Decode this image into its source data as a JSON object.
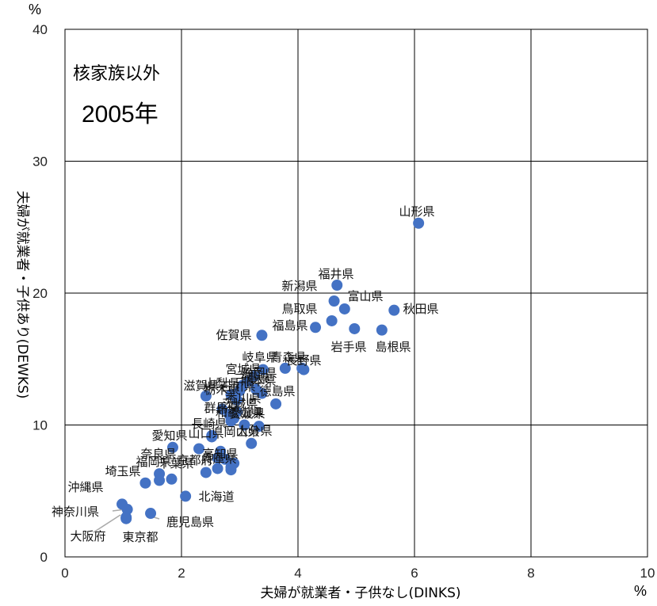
{
  "chart_data": {
    "type": "scatter",
    "title": "",
    "annotations": [
      "核家族以外",
      "2005年"
    ],
    "xlabel": "夫婦が就業者・子供なし(DINKS)",
    "ylabel": "夫婦が就業者・子供あり(DEWKS)",
    "x_unit": "%",
    "y_unit": "%",
    "xlim": [
      0,
      10
    ],
    "ylim": [
      0,
      40
    ],
    "xticks": [
      0,
      2,
      4,
      6,
      8,
      10
    ],
    "yticks": [
      0,
      10,
      20,
      30,
      40
    ],
    "grid": true,
    "point_color": "#4472c4",
    "points": [
      {
        "name": "山形県",
        "x": 6.07,
        "y": 25.3,
        "show": true
      },
      {
        "name": "福井県",
        "x": 4.67,
        "y": 20.6,
        "show": true
      },
      {
        "name": "新潟県",
        "x": 4.62,
        "y": 19.4,
        "show": true
      },
      {
        "name": "富山県",
        "x": 4.8,
        "y": 18.8,
        "show": true
      },
      {
        "name": "秋田県",
        "x": 5.65,
        "y": 18.7,
        "show": true
      },
      {
        "name": "鳥取県",
        "x": 4.58,
        "y": 17.9,
        "show": true
      },
      {
        "name": "福島県",
        "x": 4.3,
        "y": 17.4,
        "show": true
      },
      {
        "name": "岩手県",
        "x": 4.97,
        "y": 17.3,
        "show": true
      },
      {
        "name": "島根県",
        "x": 5.44,
        "y": 17.2,
        "show": true
      },
      {
        "name": "佐賀県",
        "x": 3.38,
        "y": 16.8,
        "show": true
      },
      {
        "name": "長野県",
        "x": 4.07,
        "y": 14.3,
        "show": true
      },
      {
        "name": "青森県",
        "x": 4.1,
        "y": 14.2,
        "show": false
      },
      {
        "name": "岐阜県",
        "x": 3.78,
        "y": 14.3,
        "show": true
      },
      {
        "name": "宮城県",
        "x": 3.4,
        "y": 14.2,
        "show": true
      },
      {
        "name": "静岡県",
        "x": 3.25,
        "y": 13.7,
        "show": false
      },
      {
        "name": "三重県",
        "x": 3.15,
        "y": 13.3,
        "show": false
      },
      {
        "name": "山梨県",
        "x": 3.05,
        "y": 13.0,
        "show": false
      },
      {
        "name": "熊本県",
        "x": 3.28,
        "y": 12.7,
        "show": false
      },
      {
        "name": "徳島県",
        "x": 3.38,
        "y": 12.4,
        "show": true
      },
      {
        "name": "滋賀県",
        "x": 2.42,
        "y": 12.2,
        "show": true
      },
      {
        "name": "栃木県",
        "x": 2.85,
        "y": 12.3,
        "show": false
      },
      {
        "name": "石川県",
        "x": 3.0,
        "y": 12.6,
        "show": false
      },
      {
        "name": "香川県",
        "x": 2.95,
        "y": 11.9,
        "show": false
      },
      {
        "name": "宮崎県",
        "x": 3.62,
        "y": 11.6,
        "show": false
      },
      {
        "name": "群馬県",
        "x": 2.7,
        "y": 11.2,
        "show": true
      },
      {
        "name": "茨城県",
        "x": 2.95,
        "y": 11.0,
        "show": false
      },
      {
        "name": "和歌山県",
        "x": 2.82,
        "y": 10.8,
        "show": false
      },
      {
        "name": "愛媛県",
        "x": 2.9,
        "y": 10.5,
        "show": false
      },
      {
        "name": "長崎県",
        "x": 2.85,
        "y": 10.3,
        "show": true
      },
      {
        "name": "岡山県",
        "x": 3.08,
        "y": 10.0,
        "show": true
      },
      {
        "name": "大分県",
        "x": 3.33,
        "y": 9.9,
        "show": true
      },
      {
        "name": "愛知県",
        "x": 2.52,
        "y": 9.2,
        "show": true
      },
      {
        "name": "山口県",
        "x": 2.52,
        "y": 9.1,
        "show": true
      },
      {
        "name": "奈良県",
        "x": 1.85,
        "y": 8.3,
        "show": true
      },
      {
        "name": "広島県",
        "x": 2.3,
        "y": 8.2,
        "show": false
      },
      {
        "name": "高知県",
        "x": 2.67,
        "y": 8.0,
        "show": true
      },
      {
        "name": "鹿児島県",
        "x": 3.2,
        "y": 8.6,
        "show": false
      },
      {
        "name": "兵庫県",
        "x": 2.62,
        "y": 7.5,
        "show": false
      },
      {
        "name": "京都府",
        "x": 2.75,
        "y": 7.4,
        "show": false
      },
      {
        "name": "千葉県",
        "x": 2.9,
        "y": 7.1,
        "show": false
      },
      {
        "name": "福岡県",
        "x": 2.85,
        "y": 6.8,
        "show": false
      },
      {
        "name": "埼玉県",
        "x": 1.38,
        "y": 5.6,
        "show": true
      },
      {
        "name": "大阪府",
        "x": 1.62,
        "y": 6.3,
        "show": false
      },
      {
        "name": "兵庫県 ",
        "x": 1.62,
        "y": 5.8,
        "show": false
      },
      {
        "name": "京都府 ",
        "x": 1.83,
        "y": 5.9,
        "show": false
      },
      {
        "name": "広島県 ",
        "x": 2.42,
        "y": 6.4,
        "show": false
      },
      {
        "name": "岡山県 ",
        "x": 2.62,
        "y": 6.7,
        "show": false
      },
      {
        "name": "千葉県 ",
        "x": 2.85,
        "y": 6.6,
        "show": false
      },
      {
        "name": "北海道",
        "x": 2.07,
        "y": 4.6,
        "show": true
      },
      {
        "name": "沖縄県",
        "x": 0.98,
        "y": 4.0,
        "show": true
      },
      {
        "name": "神奈川県",
        "x": 1.07,
        "y": 3.6,
        "show": true
      },
      {
        "name": "大阪府",
        "x": 1.05,
        "y": 3.0,
        "show": true
      },
      {
        "name": "鹿児島県",
        "x": 1.47,
        "y": 3.3,
        "show": true
      },
      {
        "name": "東京都",
        "x": 1.05,
        "y": 2.9,
        "show": true
      }
    ],
    "text_labels": [
      "山形県",
      "福井県",
      "新潟県",
      "富山県",
      "秋田県",
      "鳥取県",
      "福島県",
      "岩手県",
      "島根県",
      "佐賀県",
      "岐阜県",
      "青森県",
      "長野県",
      "宮城県",
      "静岡県",
      "三重県",
      "山梨県",
      "熊本県",
      "徳島県",
      "滋賀県",
      "栃木県",
      "石川県",
      "香川県",
      "群馬県",
      "茨城県",
      "和歌山県",
      "愛媛県",
      "長崎県",
      "岡山県",
      "大分県",
      "愛知県",
      "山口県",
      "奈良県",
      "高知県",
      "鹿児島県",
      "兵庫県",
      "京都府",
      "千葉県",
      "福岡県",
      "埼玉県",
      "大阪府",
      "沖縄県",
      "神奈川県",
      "北海道",
      "東京都"
    ]
  }
}
